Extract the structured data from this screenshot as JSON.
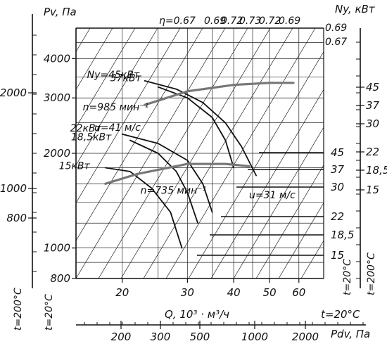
{
  "chart_data": {
    "type": "line",
    "title": "",
    "scale": "log-log",
    "grid": true,
    "x_axis_main": {
      "label": "Q, 10³ · м³/ч",
      "ticks": [
        "20",
        "30",
        "40",
        "50",
        "60"
      ],
      "range": [
        15,
        70
      ]
    },
    "x_axis_dynamic": {
      "label": "Pdv, Па",
      "ticks": [
        "200",
        "300",
        "500",
        "1000",
        "2000"
      ]
    },
    "y_axis_main": {
      "label": "Pv, Па",
      "ticks": [
        "800",
        "1000",
        "2000",
        "3000",
        "4000"
      ],
      "range": [
        800,
        5000
      ]
    },
    "y_axis_left_outer": {
      "ticks": [
        "800",
        "1000",
        "2000"
      ],
      "temp_label": "t=200°C"
    },
    "y_axis_left_inner": {
      "temp_label": "t=20°C"
    },
    "y_axis_right": {
      "label": "Ny, кВт",
      "ticks_20C": [
        "45",
        "37",
        "30",
        "22",
        "18,5",
        "15"
      ],
      "ticks_200C": [
        "45",
        "37",
        "30",
        "22",
        "18,5",
        "15"
      ],
      "temp_label_inner": "t=20°C",
      "temp_label_outer": "t=200°C"
    },
    "temp_label_bottom": "t=20°C",
    "efficiency_label": "η=0.67",
    "efficiency_lines": [
      "0.67",
      "0.69",
      "0.72",
      "0.73",
      "0.72",
      "0.69",
      "0.67"
    ],
    "series": [
      {
        "name": "Ny=45кВт",
        "x": [
          23,
          28,
          33,
          38,
          42,
          46
        ],
        "y": [
          3400,
          3200,
          2900,
          2500,
          2100,
          1700
        ]
      },
      {
        "name": "37кВт",
        "x": [
          25,
          30,
          35,
          38,
          40
        ],
        "y": [
          3250,
          3000,
          2600,
          2200,
          1800
        ]
      },
      {
        "name": "22кВт",
        "x": [
          20,
          25,
          30,
          33,
          35
        ],
        "y": [
          2300,
          2150,
          1900,
          1600,
          1300
        ]
      },
      {
        "name": "18,5кВт",
        "x": [
          21,
          25,
          28,
          30,
          32
        ],
        "y": [
          2200,
          2000,
          1750,
          1500,
          1200
        ]
      },
      {
        "name": "15кВт",
        "x": [
          18,
          21,
          24,
          27,
          29
        ],
        "y": [
          1800,
          1750,
          1550,
          1300,
          1000
        ]
      },
      {
        "name": "n=985 мин⁻¹",
        "x": [
          23,
          30,
          40,
          50,
          58
        ],
        "y": [
          2850,
          3150,
          3300,
          3350,
          3350
        ]
      },
      {
        "name": "n=735 мин⁻¹",
        "x": [
          18,
          22,
          30,
          38,
          44
        ],
        "y": [
          1600,
          1720,
          1850,
          1850,
          1820
        ]
      }
    ],
    "annotations": [
      "u=41 м/c",
      "u=31 м/c"
    ]
  }
}
